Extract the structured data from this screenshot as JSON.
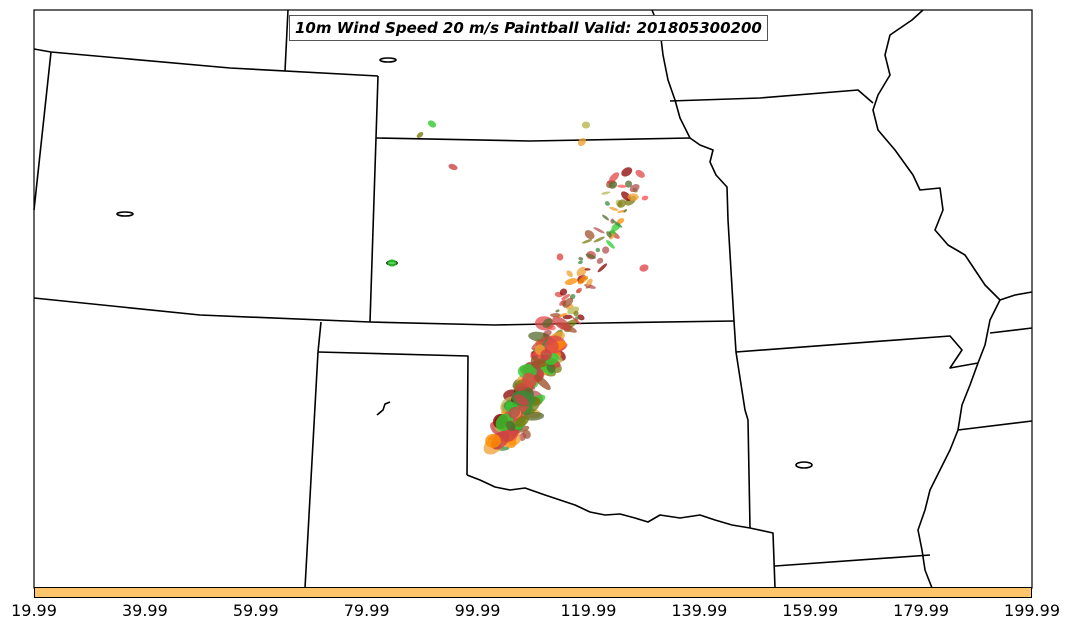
{
  "title": "10m Wind Speed 20 m/s Paintball Valid: 201805300200",
  "colorbar": {
    "color": "#ffc56b",
    "tick_labels": [
      "19.99",
      "39.99",
      "59.99",
      "79.99",
      "99.99",
      "119.99",
      "139.99",
      "159.99",
      "179.99",
      "199.99"
    ]
  },
  "paint_colors": [
    "#e04848",
    "#cc4444",
    "#b05050",
    "#f0a030",
    "#ff8c00",
    "#7a7a10",
    "#3c8c3c",
    "#2ecc2e",
    "#b7b74e",
    "#8b0000",
    "#556b2f",
    "#ff5555",
    "#a0522d"
  ]
}
